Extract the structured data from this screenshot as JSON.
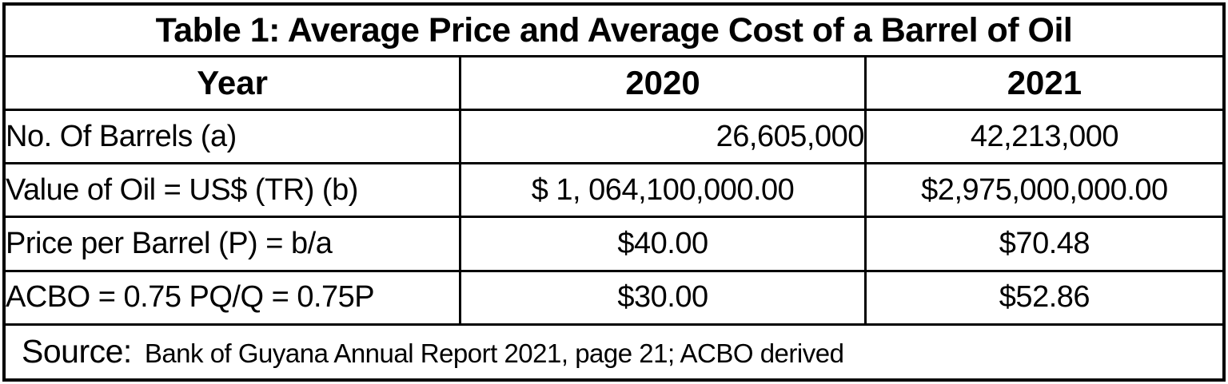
{
  "table": {
    "title": "Table 1: Average Price and Average Cost of a Barrel of Oil",
    "header": {
      "year": "Year",
      "col_2020": "2020",
      "col_2021": "2021"
    },
    "rows": [
      {
        "label": "No. Of Barrels (a)",
        "v2020": "26,605,000",
        "v2021": "42,213,000"
      },
      {
        "label": "Value of Oil = US$ (TR) (b)",
        "v2020": "$ 1, 064,100,000.00",
        "v2021": "$2,975,000,000.00"
      },
      {
        "label": "Price per Barrel (P) = b/a",
        "v2020": "$40.00",
        "v2021": "$70.48"
      },
      {
        "label": "ACBO = 0.75 PQ/Q = 0.75P",
        "v2020": "$30.00",
        "v2021": "$52.86"
      }
    ],
    "source": {
      "label": "Source:",
      "text": "Bank of Guyana Annual Report 2021, page 21; ACBO derived"
    }
  },
  "colors": {
    "border": "#000000",
    "text": "#000000",
    "background": "#ffffff"
  }
}
